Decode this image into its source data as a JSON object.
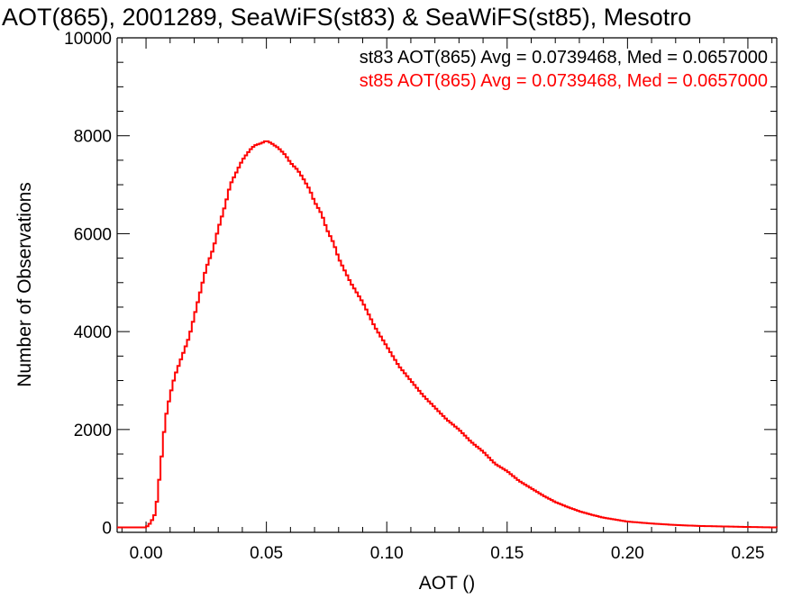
{
  "chart_data": {
    "type": "line",
    "step": true,
    "title": "AOT(865), 2001289, SeaWiFS(st83) & SeaWiFS(st85), Mesotro",
    "xlabel": "AOT ()",
    "ylabel": "Number of Observations",
    "xlim": [
      -0.012,
      0.262
    ],
    "ylim": [
      -100,
      10000
    ],
    "xticks": [
      0.0,
      0.05,
      0.1,
      0.15,
      0.2,
      0.25
    ],
    "xtick_labels": [
      "0.00",
      "0.05",
      "0.10",
      "0.15",
      "0.20",
      "0.25"
    ],
    "yticks": [
      0,
      2000,
      4000,
      6000,
      8000,
      10000
    ],
    "ytick_labels": [
      "0",
      "2000",
      "4000",
      "6000",
      "8000",
      "10000"
    ],
    "grid": false,
    "annotations": [
      {
        "text": "st83 AOT(865) Avg = 0.0739468, Med = 0.0657000",
        "color": "#000000"
      },
      {
        "text": "st85 AOT(865) Avg = 0.0739468, Med = 0.0657000",
        "color": "#ff0000"
      }
    ],
    "series": [
      {
        "color": "#ff0000",
        "x": [
          -0.012,
          0.0,
          0.002,
          0.004,
          0.006,
          0.008,
          0.01,
          0.012,
          0.015,
          0.018,
          0.02,
          0.022,
          0.025,
          0.028,
          0.03,
          0.033,
          0.035,
          0.038,
          0.04,
          0.043,
          0.045,
          0.048,
          0.05,
          0.052,
          0.055,
          0.058,
          0.06,
          0.063,
          0.065,
          0.068,
          0.07,
          0.073,
          0.075,
          0.078,
          0.08,
          0.085,
          0.09,
          0.095,
          0.1,
          0.105,
          0.11,
          0.115,
          0.12,
          0.125,
          0.13,
          0.135,
          0.14,
          0.145,
          0.15,
          0.155,
          0.16,
          0.165,
          0.17,
          0.175,
          0.18,
          0.185,
          0.19,
          0.195,
          0.2,
          0.21,
          0.22,
          0.23,
          0.24,
          0.25,
          0.262
        ],
        "values": [
          0,
          0,
          100,
          300,
          1200,
          2200,
          2700,
          3100,
          3500,
          3900,
          4300,
          4700,
          5300,
          5700,
          6100,
          6600,
          7000,
          7300,
          7500,
          7700,
          7800,
          7850,
          7900,
          7850,
          7750,
          7600,
          7450,
          7300,
          7150,
          6900,
          6650,
          6400,
          6100,
          5800,
          5500,
          5000,
          4600,
          4100,
          3700,
          3300,
          3000,
          2700,
          2450,
          2200,
          2000,
          1750,
          1550,
          1300,
          1150,
          950,
          800,
          650,
          520,
          420,
          330,
          260,
          200,
          160,
          120,
          80,
          50,
          30,
          20,
          10,
          0
        ]
      }
    ]
  }
}
